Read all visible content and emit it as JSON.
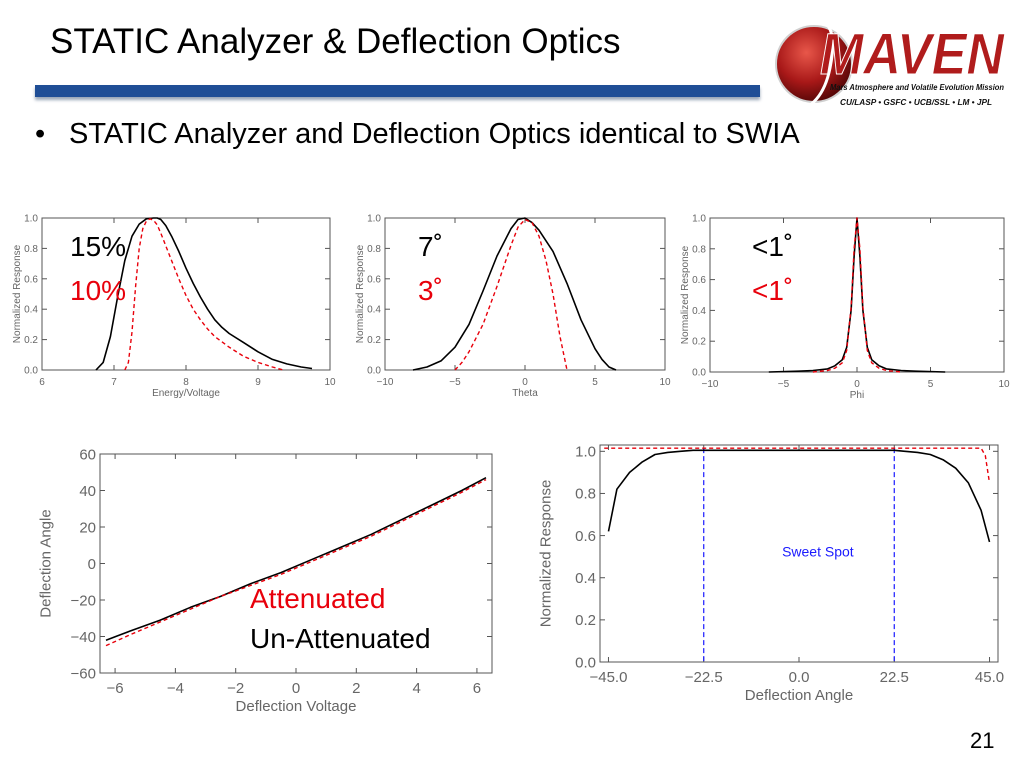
{
  "slide": {
    "title": "STATIC Analyzer & Deflection Optics",
    "bullet": "STATIC Analyzer and Deflection Optics identical to SWIA",
    "bullet_marker": "•",
    "page_number": "21",
    "accent_color": "#1f4e96"
  },
  "logo": {
    "name": "MAVEN",
    "subtitle": "Mars Atmosphere and Volatile Evolution Mission",
    "partners": "CU/LASP • GSFC • UCB/SSL • LM • JPL",
    "brand_color": "#b01c1c"
  },
  "colors": {
    "measured": "#000000",
    "model": "#e8000b",
    "sweet_spot": "#1a1aff"
  },
  "chart_data": [
    {
      "type": "line",
      "xlabel": "Energy/Voltage",
      "ylabel": "Normalized Response",
      "xlim": [
        6,
        10
      ],
      "ylim": [
        0,
        1
      ],
      "xticks": [
        6,
        7,
        8,
        9,
        10
      ],
      "yticks": [
        0.0,
        0.2,
        0.4,
        0.6,
        0.8,
        1.0
      ],
      "xtick_labels": [
        "6",
        "7",
        "8",
        "9",
        "10"
      ],
      "ytick_labels": [
        "0.0",
        "0.2",
        "0.4",
        "0.6",
        "0.8",
        "1.0"
      ],
      "annotations": [
        {
          "text": "15%",
          "color": "#000000"
        },
        {
          "text": "10%",
          "color": "#e8000b"
        }
      ],
      "series": [
        {
          "color": "#000000",
          "dash": false,
          "x": [
            6.75,
            6.85,
            6.95,
            7.05,
            7.15,
            7.25,
            7.35,
            7.45,
            7.55,
            7.6,
            7.65,
            7.72,
            7.8,
            7.9,
            8.0,
            8.1,
            8.2,
            8.3,
            8.4,
            8.5,
            8.6,
            8.8,
            9.0,
            9.2,
            9.4,
            9.6,
            9.75
          ],
          "y": [
            0.0,
            0.05,
            0.22,
            0.48,
            0.72,
            0.88,
            0.96,
            0.995,
            1.0,
            1.0,
            0.99,
            0.95,
            0.88,
            0.78,
            0.67,
            0.57,
            0.48,
            0.4,
            0.33,
            0.28,
            0.24,
            0.18,
            0.12,
            0.07,
            0.04,
            0.02,
            0.01
          ]
        },
        {
          "color": "#e8000b",
          "dash": true,
          "x": [
            7.15,
            7.2,
            7.25,
            7.3,
            7.35,
            7.4,
            7.45,
            7.5,
            7.55,
            7.6,
            7.65,
            7.7,
            7.8,
            7.9,
            8.0,
            8.1,
            8.2,
            8.3,
            8.4,
            8.6,
            8.8,
            9.0,
            9.2,
            9.35
          ],
          "y": [
            0.0,
            0.05,
            0.25,
            0.55,
            0.8,
            0.93,
            0.98,
            0.995,
            0.985,
            0.955,
            0.9,
            0.84,
            0.72,
            0.6,
            0.49,
            0.4,
            0.33,
            0.27,
            0.22,
            0.15,
            0.09,
            0.05,
            0.02,
            0.0
          ]
        }
      ]
    },
    {
      "type": "line",
      "xlabel": "Theta",
      "ylabel": "Normalized Response",
      "xlim": [
        -10,
        10
      ],
      "ylim": [
        0,
        1
      ],
      "xticks": [
        -10,
        -5,
        0,
        5,
        10
      ],
      "yticks": [
        0.0,
        0.2,
        0.4,
        0.6,
        0.8,
        1.0
      ],
      "xtick_labels": [
        "−10",
        "−5",
        "0",
        "5",
        "10"
      ],
      "ytick_labels": [
        "0.0",
        "0.2",
        "0.4",
        "0.6",
        "0.8",
        "1.0"
      ],
      "annotations": [
        {
          "text": "7˚",
          "color": "#000000"
        },
        {
          "text": "3˚",
          "color": "#e8000b"
        }
      ],
      "series": [
        {
          "color": "#000000",
          "dash": false,
          "x": [
            -8,
            -7,
            -6,
            -5,
            -4,
            -3,
            -2,
            -1,
            -0.5,
            0,
            0.5,
            1,
            2,
            3,
            4,
            5,
            5.5,
            6,
            6.5
          ],
          "y": [
            0.0,
            0.02,
            0.06,
            0.15,
            0.3,
            0.52,
            0.75,
            0.93,
            0.99,
            1.0,
            0.97,
            0.92,
            0.78,
            0.57,
            0.33,
            0.14,
            0.07,
            0.02,
            0.0
          ]
        },
        {
          "color": "#e8000b",
          "dash": true,
          "x": [
            -5,
            -4.5,
            -4,
            -3,
            -2,
            -1,
            -0.5,
            0,
            0.5,
            1,
            1.5,
            2,
            2.5,
            3
          ],
          "y": [
            0.0,
            0.05,
            0.12,
            0.3,
            0.55,
            0.82,
            0.94,
            0.99,
            0.97,
            0.88,
            0.72,
            0.5,
            0.22,
            0.0
          ]
        }
      ]
    },
    {
      "type": "line",
      "xlabel": "Phi",
      "ylabel": "Normalized Response",
      "xlim": [
        -10,
        10
      ],
      "ylim": [
        0,
        1
      ],
      "xticks": [
        -10,
        -5,
        0,
        5,
        10
      ],
      "yticks": [
        0.0,
        0.2,
        0.4,
        0.6,
        0.8,
        1.0
      ],
      "xtick_labels": [
        "−10",
        "−5",
        "0",
        "5",
        "10"
      ],
      "ytick_labels": [
        "0.0",
        "0.2",
        "0.4",
        "0.6",
        "0.8",
        "1.0"
      ],
      "annotations": [
        {
          "text": "<1˚",
          "color": "#000000"
        },
        {
          "text": "<1˚",
          "color": "#e8000b"
        }
      ],
      "series": [
        {
          "color": "#000000",
          "dash": false,
          "x": [
            -6,
            -4,
            -3,
            -2,
            -1.5,
            -1,
            -0.7,
            -0.4,
            -0.2,
            0,
            0.2,
            0.4,
            0.7,
            1,
            1.5,
            2,
            3,
            4,
            6
          ],
          "y": [
            0.0,
            0.005,
            0.01,
            0.02,
            0.04,
            0.08,
            0.16,
            0.4,
            0.75,
            1.0,
            0.75,
            0.4,
            0.16,
            0.08,
            0.04,
            0.02,
            0.01,
            0.005,
            0.0
          ]
        },
        {
          "color": "#e8000b",
          "dash": true,
          "x": [
            -3,
            -2,
            -1.5,
            -1,
            -0.7,
            -0.4,
            -0.2,
            0,
            0.2,
            0.4,
            0.7,
            1,
            1.5,
            2,
            3
          ],
          "y": [
            0.0,
            0.01,
            0.025,
            0.06,
            0.14,
            0.42,
            0.8,
            1.0,
            0.8,
            0.42,
            0.14,
            0.06,
            0.025,
            0.01,
            0.0
          ]
        }
      ]
    },
    {
      "type": "line",
      "xlabel": "Deflection Voltage",
      "ylabel": "Deflection Angle",
      "xlim": [
        -6.5,
        6.5
      ],
      "ylim": [
        -60,
        60
      ],
      "xticks": [
        -6,
        -4,
        -2,
        0,
        2,
        4,
        6
      ],
      "yticks": [
        -60,
        -40,
        -20,
        0,
        20,
        40,
        60
      ],
      "xtick_labels": [
        "−6",
        "−4",
        "−2",
        "0",
        "2",
        "4",
        "6"
      ],
      "ytick_labels": [
        "−60",
        "−40",
        "−20",
        "0",
        "20",
        "40",
        "60"
      ],
      "annotations": [
        {
          "text": "Attenuated",
          "color": "#e8000b"
        },
        {
          "text": "Un-Attenuated",
          "color": "#000000"
        }
      ],
      "series": [
        {
          "color": "#000000",
          "dash": false,
          "x": [
            -6.3,
            -5.5,
            -4.5,
            -3.5,
            -2.5,
            -1.5,
            -0.5,
            0.5,
            1.5,
            2.5,
            3.5,
            4.5,
            5.5,
            6.3
          ],
          "y": [
            -42,
            -37,
            -31,
            -24,
            -18,
            -11,
            -5,
            2,
            9,
            16,
            24,
            32,
            40,
            47
          ]
        },
        {
          "color": "#e8000b",
          "dash": true,
          "x": [
            -6.3,
            -5.5,
            -4.5,
            -3.5,
            -2.5,
            -1.5,
            -0.5,
            0.5,
            1.5,
            2.5,
            3.5,
            4.5,
            5.5,
            6.3
          ],
          "y": [
            -45,
            -39,
            -32,
            -25,
            -18,
            -12,
            -6,
            1,
            8,
            15,
            23,
            31,
            39,
            46
          ]
        }
      ]
    },
    {
      "type": "line",
      "xlabel": "Deflection Angle",
      "ylabel": "Normalized Response",
      "xlim": [
        -47,
        47
      ],
      "ylim": [
        0,
        1.03
      ],
      "xticks": [
        -45,
        -22.5,
        0,
        22.5,
        45
      ],
      "yticks": [
        0.0,
        0.2,
        0.4,
        0.6,
        0.8,
        1.0
      ],
      "xtick_labels": [
        "−45.0",
        "−22.5",
        "0.0",
        "22.5",
        "45.0"
      ],
      "ytick_labels": [
        "0.0",
        "0.2",
        "0.4",
        "0.6",
        "0.8",
        "1.0"
      ],
      "annotations": [
        {
          "text": "Sweet Spot",
          "color": "#1a1aff"
        }
      ],
      "vlines": [
        {
          "x": -22.5,
          "color": "#1a1aff"
        },
        {
          "x": 22.5,
          "color": "#1a1aff"
        }
      ],
      "series": [
        {
          "color": "#000000",
          "dash": false,
          "x": [
            -45,
            -43,
            -40,
            -37,
            -34,
            -31,
            -28,
            -25,
            -22.5,
            -15,
            0,
            15,
            22.5,
            25,
            28,
            31,
            34,
            37,
            40,
            43,
            45
          ],
          "y": [
            0.62,
            0.82,
            0.9,
            0.95,
            0.985,
            0.995,
            1.0,
            1.005,
            1.005,
            1.005,
            1.005,
            1.005,
            1.005,
            1.0,
            0.995,
            0.985,
            0.96,
            0.92,
            0.85,
            0.72,
            0.57
          ]
        },
        {
          "color": "#e8000b",
          "dash": true,
          "x": [
            -46,
            -43,
            -40,
            0,
            40,
            43,
            44,
            45
          ],
          "y": [
            1.015,
            1.015,
            1.015,
            1.015,
            1.015,
            1.015,
            0.98,
            0.85
          ]
        }
      ]
    }
  ]
}
